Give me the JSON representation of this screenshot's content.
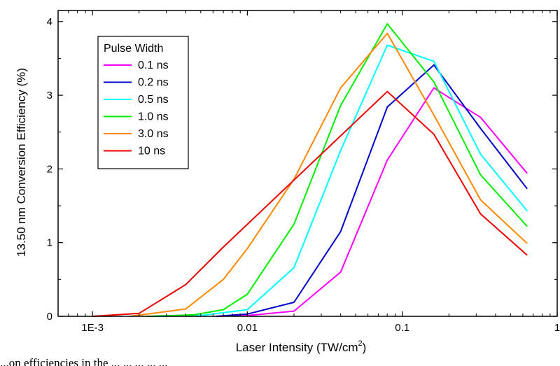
{
  "chart_data": {
    "type": "line",
    "xscale": "log",
    "xlim": [
      0.0006,
      1
    ],
    "ylim": [
      0,
      4.15
    ],
    "xlabel_main": "Laser Intensity (TW/cm",
    "xlabel_sup": "2",
    "xlabel_end": ")",
    "ylabel": "13.50 nm Conversion Efficiency (%)",
    "x_ticks": [
      {
        "value": 0.001,
        "label": "1E-3"
      },
      {
        "value": 0.01,
        "label": "0.01"
      },
      {
        "value": 0.1,
        "label": "0.1"
      },
      {
        "value": 1,
        "label": "1"
      }
    ],
    "y_ticks": [
      {
        "value": 0,
        "label": "0"
      },
      {
        "value": 1,
        "label": "1"
      },
      {
        "value": 2,
        "label": "2"
      },
      {
        "value": 3,
        "label": "3"
      },
      {
        "value": 4,
        "label": "4"
      }
    ],
    "legend_title": "Pulse Width",
    "legend_position": "top-left",
    "grid": false,
    "series": [
      {
        "name": "0.1 ns",
        "color": "#ff00ff",
        "x": [
          0.00625,
          0.01,
          0.02,
          0.04,
          0.08,
          0.16,
          0.32,
          0.64
        ],
        "y": [
          0,
          0.01,
          0.07,
          0.6,
          2.12,
          3.1,
          2.7,
          1.94
        ]
      },
      {
        "name": "0.2 ns",
        "color": "#0000cc",
        "x": [
          0.00625,
          0.01,
          0.02,
          0.04,
          0.08,
          0.16,
          0.32,
          0.64
        ],
        "y": [
          0,
          0.03,
          0.19,
          1.15,
          2.84,
          3.41,
          2.55,
          1.73
        ]
      },
      {
        "name": "0.5 ns",
        "color": "#00ffff",
        "x": [
          0.0025,
          0.005,
          0.01,
          0.02,
          0.04,
          0.08,
          0.16,
          0.32,
          0.64
        ],
        "y": [
          0,
          0.01,
          0.09,
          0.66,
          2.25,
          3.68,
          3.46,
          2.2,
          1.43
        ]
      },
      {
        "name": "1.0 ns",
        "color": "#00ee00",
        "x": [
          0.00225,
          0.0045,
          0.007,
          0.01,
          0.02,
          0.04,
          0.08,
          0.16,
          0.32,
          0.64
        ],
        "y": [
          0,
          0.02,
          0.09,
          0.3,
          1.25,
          2.86,
          3.97,
          3.18,
          1.92,
          1.22
        ]
      },
      {
        "name": "3.0 ns",
        "color": "#ff8800",
        "x": [
          0.00175,
          0.004,
          0.007,
          0.01,
          0.02,
          0.04,
          0.08,
          0.16,
          0.32,
          0.64
        ],
        "y": [
          0,
          0.1,
          0.5,
          0.92,
          1.86,
          3.1,
          3.84,
          2.73,
          1.58,
          0.99
        ]
      },
      {
        "name": "10 ns",
        "color": "#ee0000",
        "x": [
          0.001,
          0.002,
          0.004,
          0.007,
          0.08,
          0.16,
          0.32,
          0.64
        ],
        "y": [
          0,
          0.04,
          0.43,
          0.94,
          3.05,
          2.47,
          1.39,
          0.83
        ]
      }
    ]
  },
  "caption": "...on efficiencies in the ... ... ... ... ..."
}
